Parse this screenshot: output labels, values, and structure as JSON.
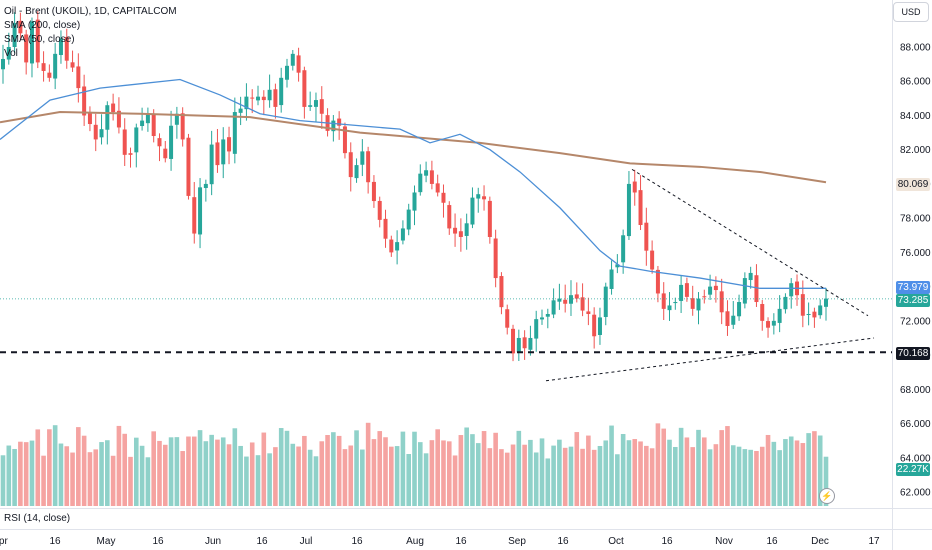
{
  "legend": {
    "symbol": "Oil - Brent (UKOIL), 1D, CAPITALCOM",
    "sma1": "SMA (200, close)",
    "sma2": "SMA (50, close)",
    "vol": "Vol"
  },
  "currency": "USD",
  "rsi_label": "RSI (14, close)",
  "price_tags": {
    "sma200": "80.069",
    "sma50": "73.979",
    "last": "73.285",
    "support": "70.168",
    "volume": "22.27K"
  },
  "colors": {
    "up": "#26a69a",
    "down": "#ef5350",
    "vol_up": "#8fd1c9",
    "vol_down": "#f5a3a1",
    "sma200": "#b5876a",
    "sma50": "#4c8fd6",
    "sma50_tag": "#4f8fe8"
  },
  "chart_data": {
    "type": "candlestick",
    "y_axis": {
      "range": [
        61.0,
        90.0
      ],
      "ticks": [
        "62.000",
        "64.000",
        "66.000",
        "68.000",
        "70.000",
        "72.000",
        "74.000",
        "76.000",
        "78.000",
        "80.000",
        "82.000",
        "84.000",
        "86.000",
        "88.000"
      ]
    },
    "x_axis": {
      "ticks": [
        "Apr",
        "16",
        "May",
        "16",
        "Jun",
        "16",
        "Jul",
        "16",
        "Aug",
        "16",
        "Sep",
        "16",
        "Oct",
        "16",
        "Nov",
        "16",
        "Dec",
        "17"
      ]
    },
    "sma200": [
      [
        0,
        83.6
      ],
      [
        60,
        84.2
      ],
      [
        140,
        84.1
      ],
      [
        250,
        83.9
      ],
      [
        360,
        83.0
      ],
      [
        480,
        82.4
      ],
      [
        560,
        81.8
      ],
      [
        630,
        81.2
      ],
      [
        700,
        81.0
      ],
      [
        760,
        80.7
      ],
      [
        826,
        80.1
      ]
    ],
    "sma50": [
      [
        0,
        82.6
      ],
      [
        50,
        84.9
      ],
      [
        100,
        85.6
      ],
      [
        180,
        86.1
      ],
      [
        220,
        85.2
      ],
      [
        260,
        84.1
      ],
      [
        300,
        83.7
      ],
      [
        360,
        83.4
      ],
      [
        400,
        83.2
      ],
      [
        430,
        82.4
      ],
      [
        460,
        82.9
      ],
      [
        490,
        82.0
      ],
      [
        520,
        80.7
      ],
      [
        560,
        78.6
      ],
      [
        600,
        76.1
      ],
      [
        620,
        75.2
      ],
      [
        650,
        74.9
      ],
      [
        700,
        74.5
      ],
      [
        760,
        73.9
      ],
      [
        800,
        73.9
      ],
      [
        826,
        73.9
      ]
    ],
    "support_level": 70.168,
    "triangle_upper": [
      [
        632,
        80.85
      ],
      [
        868,
        72.3
      ]
    ],
    "triangle_lower": [
      [
        546,
        68.5
      ],
      [
        874,
        71.0
      ]
    ],
    "closes": [
      87.3,
      88.0,
      89.4,
      88.8,
      87.1,
      89.5,
      87.1,
      86.6,
      86.2,
      87.6,
      88.5,
      87.2,
      86.8,
      85.6,
      84.0,
      83.5,
      82.6,
      83.2,
      84.6,
      84.2,
      83.3,
      81.7,
      81.7,
      83.3,
      83.7,
      84.1,
      82.8,
      82.2,
      81.5,
      83.4,
      84.1,
      82.6,
      79.3,
      77.1,
      79.8,
      80.0,
      82.3,
      81.1,
      82.6,
      81.9,
      84.2,
      84.4,
      85.1,
      85.0,
      85.1,
      84.9,
      85.5,
      84.5,
      86.2,
      86.9,
      87.6,
      86.5,
      84.5,
      84.6,
      84.9,
      84.1,
      83.1,
      83.7,
      83.4,
      81.8,
      80.4,
      81.1,
      81.9,
      80.1,
      79.0,
      77.9,
      76.8,
      76.0,
      76.6,
      77.4,
      78.5,
      79.5,
      80.6,
      80.8,
      80.0,
      79.5,
      78.9,
      77.4,
      77.1,
      76.9,
      77.7,
      79.2,
      79.4,
      79.1,
      76.9,
      74.5,
      72.8,
      71.6,
      70.1,
      71.0,
      70.4,
      71.0,
      72.1,
      72.2,
      72.4,
      73.2,
      73.3,
      73.0,
      73.5,
      73.3,
      72.6,
      72.4,
      71.1,
      72.2,
      74.0,
      75.0,
      75.3,
      77.0,
      80.0,
      79.5,
      77.6,
      76.1,
      75.0,
      73.6,
      72.7,
      72.9,
      73.1,
      74.1,
      73.4,
      72.7,
      73.3,
      73.4,
      74.0,
      73.8,
      72.5,
      71.7,
      72.3,
      73.1,
      74.5,
      74.8,
      73.1,
      72.0,
      71.6,
      72.0,
      72.7,
      73.4,
      74.2,
      73.5,
      72.3,
      72.4,
      72.2,
      72.9,
      73.3
    ]
  }
}
